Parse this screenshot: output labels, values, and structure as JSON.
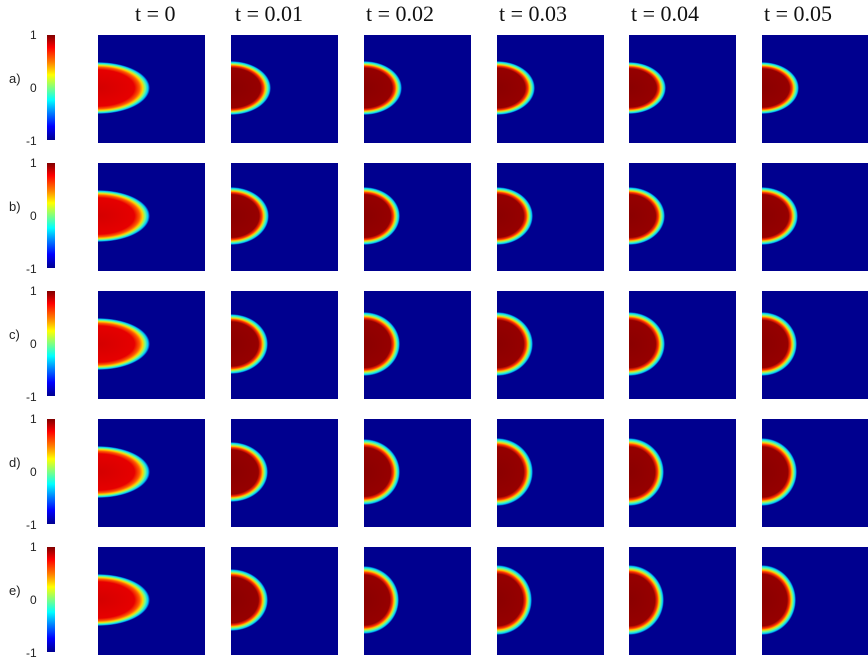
{
  "time_labels": [
    "t = 0",
    "t = 0.01",
    "t = 0.02",
    "t = 0.03",
    "t = 0.04",
    "t = 0.05"
  ],
  "row_labels": [
    "a)",
    "b)",
    "c)",
    "d)",
    "e)"
  ],
  "colorbar_ticks": [
    "1",
    "0",
    "-1"
  ],
  "colorbar_range": [
    -1,
    1
  ],
  "colormap": "jet",
  "colors": {
    "background": "#00008f",
    "interior_t0": "#d40000",
    "interior_later": "#8b0000"
  }
}
